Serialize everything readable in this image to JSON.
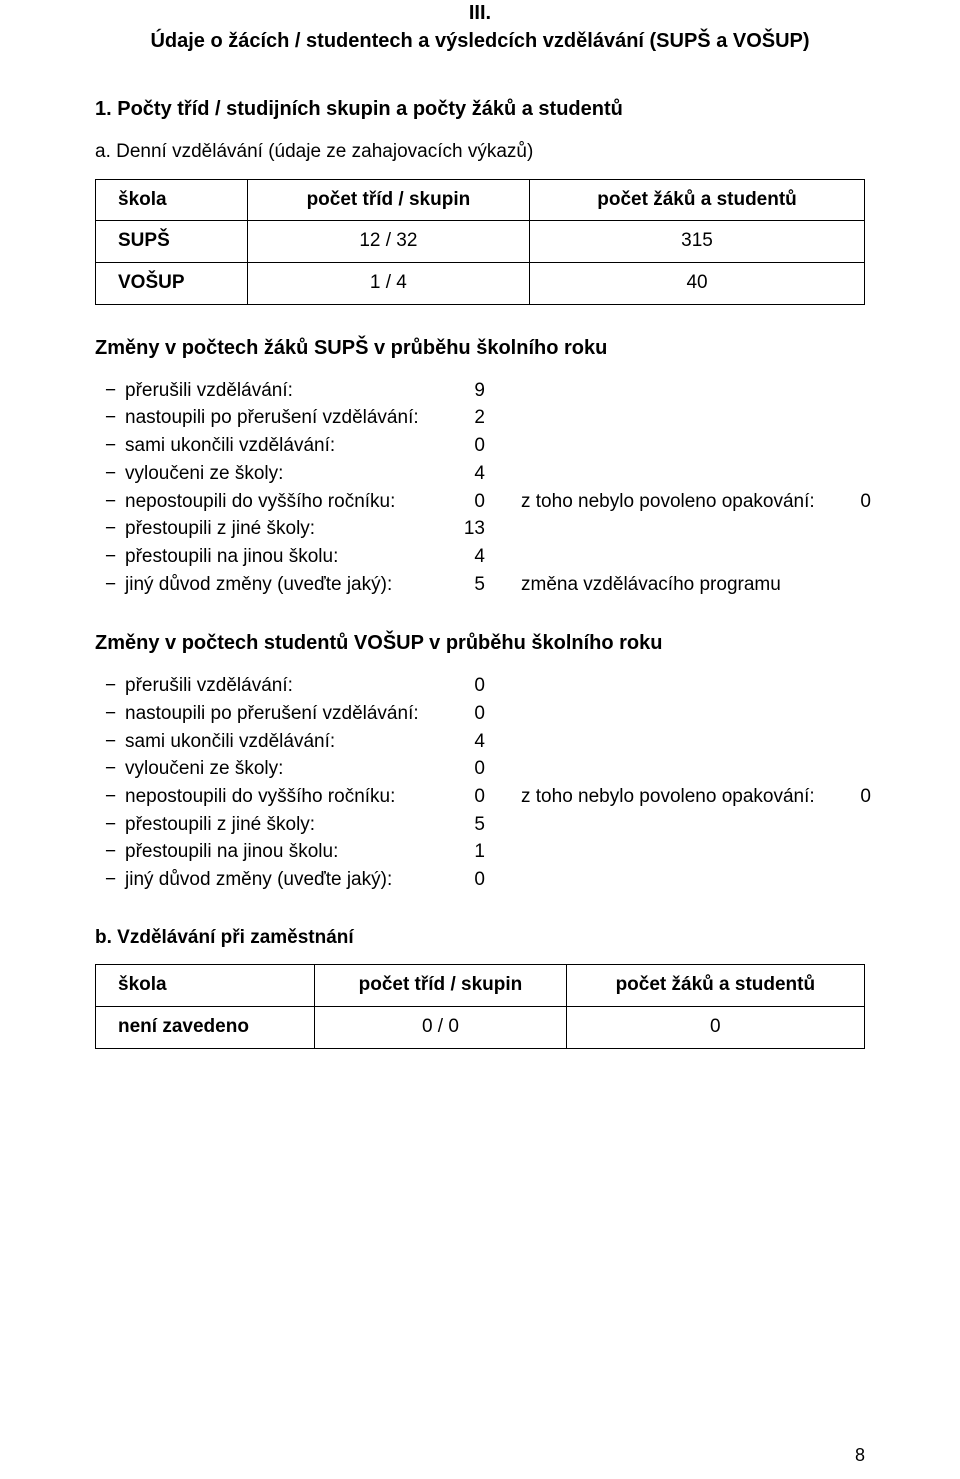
{
  "section_number": "III.",
  "section_title": "Údaje o žácích / studentech a výsledcích vzdělávání (SUPŠ a VOŠUP)",
  "sub1": "1.  Počty tříd / studijních skupin a počty žáků a studentů",
  "para_a": "a.  Denní vzdělávání (údaje ze zahajovacích výkazů)",
  "table_a": {
    "headers": [
      "škola",
      "počet tříd / skupin",
      "počet žáků a studentů"
    ],
    "rows": [
      [
        "SUPŠ",
        "12 / 32",
        "315"
      ],
      [
        "VOŠUP",
        "1 / 4",
        "40"
      ]
    ]
  },
  "changes_sups_title": "Změny v počtech žáků SUPŠ v průběhu školního roku",
  "changes_vosup_title": "Změny v počtech studentů VOŠUP v průběhu školního roku",
  "list_sups": [
    {
      "label": "přerušili vzdělávání:",
      "val": "9"
    },
    {
      "label": "nastoupili po přerušení vzdělávání:",
      "val": "2"
    },
    {
      "label": "sami ukončili vzdělávání:",
      "val": "0"
    },
    {
      "label": "vyloučeni ze školy:",
      "val": "4"
    },
    {
      "label": "nepostoupili do vyššího ročníku:",
      "val": "0",
      "note": "z toho nebylo povoleno opakování:",
      "noteval": "0"
    },
    {
      "label": "přestoupili z jiné školy:",
      "val": "13"
    },
    {
      "label": "přestoupili na jinou školu:",
      "val": "4"
    },
    {
      "label": "jiný důvod změny (uveďte jaký):",
      "val": "5",
      "note": "změna vzdělávacího programu"
    }
  ],
  "list_vosup": [
    {
      "label": "přerušili vzdělávání:",
      "val": "0"
    },
    {
      "label": "nastoupili po přerušení vzdělávání:",
      "val": "0"
    },
    {
      "label": "sami ukončili vzdělávání:",
      "val": "4"
    },
    {
      "label": "vyloučeni ze školy:",
      "val": "0"
    },
    {
      "label": "nepostoupili do vyššího ročníku:",
      "val": "0",
      "note": "z toho nebylo povoleno opakování:",
      "noteval": "0"
    },
    {
      "label": "přestoupili z jiné školy:",
      "val": "5"
    },
    {
      "label": "přestoupili na jinou školu:",
      "val": "1"
    },
    {
      "label": "jiný důvod změny (uveďte jaký):",
      "val": "0"
    }
  ],
  "para_b": "b.  Vzdělávání při zaměstnání",
  "table_b": {
    "headers": [
      "škola",
      "počet tříd / skupin",
      "počet žáků a studentů"
    ],
    "rows": [
      [
        "není zavedeno",
        "0 / 0",
        "0"
      ]
    ]
  },
  "page_number": "8",
  "dash": "−"
}
